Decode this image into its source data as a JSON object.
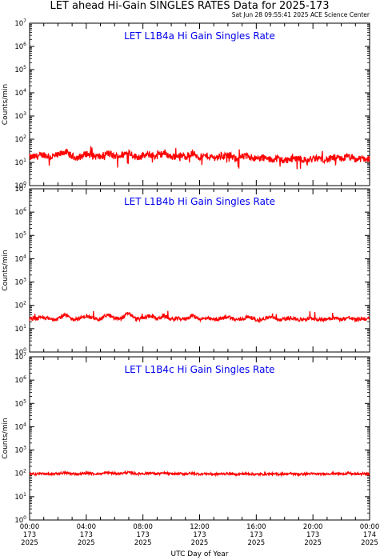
{
  "title": "LET ahead Hi-Gain SINGLES RATES Data for 2025-173",
  "timestamp": "Sat Jun 28 09:55:41 2025 ACE Science Center",
  "colors": {
    "series": "#ff0000",
    "panel_title": "#0000ee",
    "axes": "#000000"
  },
  "chart_data": [
    {
      "type": "line",
      "title": "LET L1B4a Hi Gain Singles Rate",
      "ylabel": "Counts/min",
      "yscale": "log",
      "ylim": [
        1,
        10000000
      ],
      "xlim": [
        0,
        24
      ],
      "xunit": "hours (UTC), day 173 of 2025",
      "series": [
        {
          "x": [
            0,
            0.5,
            1,
            1.5,
            2,
            2.5,
            3,
            3.5,
            4,
            4.5,
            5,
            5.5,
            6,
            6.5,
            7,
            7.5,
            8,
            8.5,
            9,
            9.5,
            10,
            10.5,
            11,
            11.5,
            12,
            12.5,
            13,
            13.5,
            14,
            14.5,
            15,
            15.5,
            16,
            16.5,
            17,
            17.5,
            18,
            18.5,
            19,
            19.5,
            20,
            20.5,
            21,
            21.5,
            22,
            22.5,
            23,
            23.5,
            24
          ],
          "values": [
            16,
            18,
            22,
            17,
            20,
            30,
            18,
            16,
            24,
            19,
            17,
            25,
            18,
            20,
            28,
            17,
            19,
            22,
            18,
            26,
            17,
            20,
            18,
            24,
            17,
            19,
            16,
            18,
            21,
            15,
            17,
            19,
            14,
            16,
            13,
            15,
            12,
            14,
            16,
            12,
            14,
            15,
            13,
            16,
            14,
            18,
            13,
            15,
            14
          ]
        }
      ]
    },
    {
      "type": "line",
      "title": "LET L1B4b Hi Gain Singles Rate",
      "ylabel": "Counts/min",
      "yscale": "log",
      "ylim": [
        1,
        10000000
      ],
      "xlim": [
        0,
        24
      ],
      "series": [
        {
          "x": [
            0,
            0.5,
            1,
            1.5,
            2,
            2.5,
            3,
            3.5,
            4,
            4.5,
            5,
            5.5,
            6,
            6.5,
            7,
            7.5,
            8,
            8.5,
            9,
            9.5,
            10,
            10.5,
            11,
            11.5,
            12,
            12.5,
            13,
            13.5,
            14,
            14.5,
            15,
            15.5,
            16,
            16.5,
            17,
            17.5,
            18,
            18.5,
            19,
            19.5,
            20,
            20.5,
            21,
            21.5,
            22,
            22.5,
            23,
            23.5,
            24
          ],
          "values": [
            26,
            27,
            30,
            25,
            28,
            38,
            26,
            27,
            35,
            27,
            26,
            40,
            27,
            28,
            48,
            26,
            27,
            38,
            26,
            36,
            25,
            27,
            26,
            37,
            26,
            27,
            25,
            26,
            34,
            24,
            26,
            33,
            23,
            26,
            32,
            24,
            25,
            30,
            24,
            26,
            28,
            24,
            27,
            29,
            25,
            30,
            24,
            27,
            26
          ]
        }
      ]
    },
    {
      "type": "line",
      "title": "LET L1B4c Hi Gain Singles Rate",
      "ylabel": "Counts/min",
      "yscale": "log",
      "ylim": [
        1,
        10000000
      ],
      "xlim": [
        0,
        24
      ],
      "xlabel": "UTC Day of Year",
      "tick_labels": [
        [
          "00:00",
          "173",
          "2025"
        ],
        [
          "04:00",
          "173",
          "2025"
        ],
        [
          "08:00",
          "173",
          "2025"
        ],
        [
          "12:00",
          "173",
          "2025"
        ],
        [
          "16:00",
          "173",
          "2025"
        ],
        [
          "20:00",
          "173",
          "2025"
        ],
        [
          "00:00",
          "174",
          "2025"
        ]
      ],
      "series": [
        {
          "x": [
            0,
            0.5,
            1,
            1.5,
            2,
            2.5,
            3,
            3.5,
            4,
            4.5,
            5,
            5.5,
            6,
            6.5,
            7,
            7.5,
            8,
            8.5,
            9,
            9.5,
            10,
            10.5,
            11,
            11.5,
            12,
            12.5,
            13,
            13.5,
            14,
            14.5,
            15,
            15.5,
            16,
            16.5,
            17,
            17.5,
            18,
            18.5,
            19,
            19.5,
            20,
            20.5,
            21,
            21.5,
            22,
            22.5,
            23,
            23.5,
            24
          ],
          "values": [
            92,
            95,
            98,
            90,
            100,
            105,
            96,
            94,
            102,
            97,
            95,
            108,
            98,
            100,
            110,
            96,
            98,
            104,
            95,
            102,
            94,
            97,
            96,
            101,
            94,
            96,
            92,
            95,
            99,
            91,
            94,
            97,
            90,
            93,
            95,
            92,
            94,
            97,
            91,
            95,
            96,
            92,
            97,
            99,
            94,
            100,
            92,
            96,
            94
          ]
        }
      ]
    }
  ]
}
